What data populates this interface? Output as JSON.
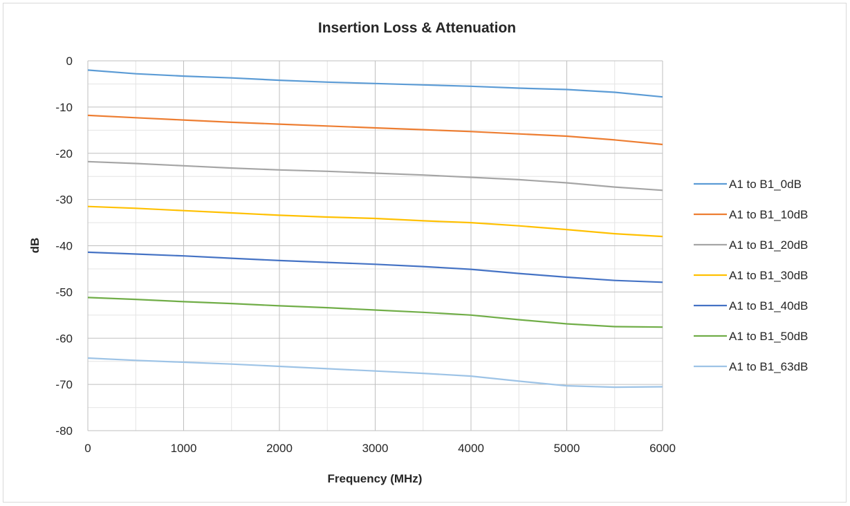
{
  "chart_data": {
    "type": "line",
    "title": "Insertion Loss & Attenuation",
    "xlabel": "Frequency (MHz)",
    "ylabel": "dB",
    "xlim": [
      0,
      6000
    ],
    "ylim": [
      -80,
      0
    ],
    "xticks": [
      0,
      1000,
      2000,
      3000,
      4000,
      5000,
      6000
    ],
    "yticks": [
      0,
      -10,
      -20,
      -30,
      -40,
      -50,
      -60,
      -70,
      -80
    ],
    "grid": "on",
    "legend_position": "right",
    "x": [
      0,
      500,
      1000,
      1500,
      2000,
      2500,
      3000,
      3500,
      4000,
      4500,
      5000,
      5500,
      6000
    ],
    "series": [
      {
        "name": "A1 to B1_0dB",
        "color": "#5b9bd5",
        "values": [
          -2,
          -2.8,
          -3.3,
          -3.7,
          -4.2,
          -4.6,
          -4.9,
          -5.2,
          -5.5,
          -5.9,
          -6.2,
          -6.8,
          -7.8
        ]
      },
      {
        "name": "A1 to B1_10dB",
        "color": "#ed7d31",
        "values": [
          -11.8,
          -12.3,
          -12.8,
          -13.3,
          -13.7,
          -14.1,
          -14.5,
          -14.9,
          -15.3,
          -15.8,
          -16.3,
          -17.1,
          -18.1
        ]
      },
      {
        "name": "A1 to B1_20dB",
        "color": "#a5a5a5",
        "values": [
          -21.8,
          -22.2,
          -22.7,
          -23.2,
          -23.6,
          -23.9,
          -24.3,
          -24.7,
          -25.2,
          -25.7,
          -26.4,
          -27.3,
          -28.0
        ]
      },
      {
        "name": "A1 to B1_30dB",
        "color": "#ffc000",
        "values": [
          -31.5,
          -31.9,
          -32.4,
          -32.9,
          -33.4,
          -33.8,
          -34.1,
          -34.6,
          -35.0,
          -35.7,
          -36.5,
          -37.4,
          -38.0
        ]
      },
      {
        "name": "A1 to B1_40dB",
        "color": "#4472c4",
        "values": [
          -41.4,
          -41.8,
          -42.2,
          -42.7,
          -43.2,
          -43.6,
          -44.0,
          -44.5,
          -45.1,
          -46.0,
          -46.8,
          -47.5,
          -47.9
        ]
      },
      {
        "name": "A1 to B1_50dB",
        "color": "#70ad47",
        "values": [
          -51.2,
          -51.6,
          -52.1,
          -52.5,
          -53.0,
          -53.4,
          -53.9,
          -54.4,
          -55.0,
          -56.0,
          -56.9,
          -57.5,
          -57.6
        ]
      },
      {
        "name": "A1 to B1_63dB",
        "color": "#9dc3e6",
        "values": [
          -64.3,
          -64.8,
          -65.2,
          -65.6,
          -66.1,
          -66.6,
          -67.1,
          -67.6,
          -68.2,
          -69.3,
          -70.3,
          -70.6,
          -70.5
        ]
      }
    ]
  }
}
